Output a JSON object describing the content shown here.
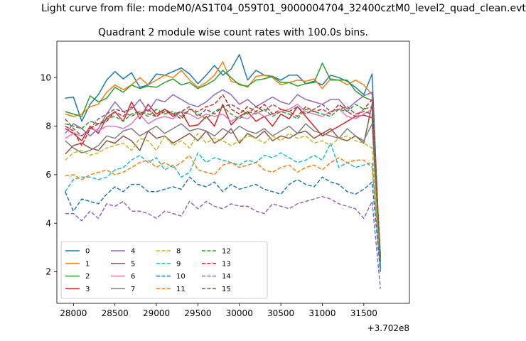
{
  "suptitle": "Light curve from file: modeM0/AS1T04_059T01_9000004704_32400cztM0_level2_quad_clean.evt",
  "chart_data": {
    "type": "line",
    "title": "Quadrant 2 module wise count rates with 100.0s bins.",
    "xlabel": "",
    "ylabel": "",
    "offset_text": "+3.702e8",
    "xlim": [
      27800,
      32050
    ],
    "ylim": [
      0.7,
      11.5
    ],
    "xticks": [
      "28000",
      "28500",
      "29000",
      "29500",
      "30000",
      "30500",
      "31000",
      "31500"
    ],
    "yticks": [
      "2",
      "4",
      "6",
      "8",
      "10"
    ],
    "grid": false,
    "legend": {
      "placement": "lower-left",
      "columns": 4
    },
    "x": [
      27900,
      28000,
      28100,
      28200,
      28300,
      28400,
      28500,
      28600,
      28700,
      28800,
      28900,
      29000,
      29100,
      29200,
      29300,
      29400,
      29500,
      29600,
      29700,
      29800,
      29900,
      30000,
      30100,
      30200,
      30300,
      30400,
      30500,
      30600,
      30700,
      30800,
      30900,
      31000,
      31100,
      31200,
      31300,
      31400,
      31500,
      31600,
      31700
    ],
    "series": [
      {
        "name": "0",
        "color": "#1f77b4",
        "style": "solid",
        "values": [
          9.15,
          9.2,
          8.2,
          8.9,
          9.3,
          9.9,
          10.25,
          9.95,
          10.2,
          9.6,
          9.7,
          10.15,
          10.1,
          10.25,
          10.4,
          10.15,
          9.75,
          10.1,
          10.5,
          10.1,
          10.35,
          10.95,
          9.9,
          10.3,
          10.1,
          10.05,
          9.9,
          10.1,
          10.1,
          9.75,
          9.85,
          9.7,
          10.1,
          10.0,
          9.85,
          9.6,
          9.3,
          10.15,
          2.1
        ]
      },
      {
        "name": "1",
        "color": "#ff7f0e",
        "style": "solid",
        "values": [
          8.5,
          8.4,
          8.5,
          8.8,
          8.9,
          9.4,
          9.7,
          9.5,
          9.7,
          10.0,
          9.7,
          9.9,
          10.1,
          10.0,
          10.3,
          9.9,
          9.6,
          9.8,
          10.1,
          10.65,
          9.85,
          9.75,
          9.6,
          10.05,
          10.1,
          10.0,
          9.7,
          9.8,
          9.9,
          9.85,
          9.95,
          9.55,
          9.95,
          9.9,
          9.7,
          9.9,
          9.7,
          9.3,
          2.5
        ]
      },
      {
        "name": "2",
        "color": "#2ca02c",
        "style": "solid",
        "values": [
          8.6,
          8.5,
          8.4,
          9.25,
          9.0,
          9.15,
          9.6,
          9.4,
          9.7,
          9.55,
          9.65,
          9.6,
          9.8,
          9.95,
          9.7,
          9.8,
          9.55,
          9.7,
          9.9,
          10.3,
          10.0,
          9.7,
          9.65,
          9.9,
          9.95,
          10.05,
          9.8,
          9.8,
          9.65,
          9.75,
          9.8,
          10.6,
          9.9,
          9.9,
          9.9,
          9.45,
          9.2,
          9.05,
          2.4
        ]
      },
      {
        "name": "3",
        "color": "#d62728",
        "style": "solid",
        "values": [
          7.9,
          7.7,
          7.4,
          8.0,
          7.7,
          8.35,
          8.6,
          8.2,
          9.0,
          8.3,
          8.9,
          8.5,
          8.7,
          8.4,
          8.6,
          8.0,
          8.05,
          8.4,
          8.0,
          8.9,
          8.05,
          8.4,
          8.6,
          8.2,
          8.4,
          8.0,
          8.5,
          8.3,
          8.8,
          8.4,
          8.0,
          7.6,
          7.8,
          8.0,
          8.2,
          8.4,
          8.45,
          8.35,
          2.6
        ]
      },
      {
        "name": "4",
        "color": "#9467bd",
        "style": "solid",
        "values": [
          7.7,
          8.1,
          7.9,
          7.6,
          7.9,
          8.5,
          9.0,
          8.6,
          8.7,
          9.1,
          8.6,
          9.1,
          9.0,
          9.3,
          9.1,
          8.9,
          8.8,
          9.0,
          9.3,
          9.5,
          9.3,
          8.9,
          9.1,
          8.8,
          9.0,
          9.2,
          9.0,
          8.9,
          9.3,
          9.1,
          9.0,
          8.9,
          9.1,
          9.1,
          8.7,
          9.0,
          9.25,
          9.4,
          2.3
        ]
      },
      {
        "name": "5",
        "color": "#8c564b",
        "style": "solid",
        "values": [
          6.85,
          7.2,
          7.3,
          7.1,
          7.0,
          7.4,
          7.3,
          7.6,
          7.4,
          7.0,
          7.8,
          7.5,
          7.6,
          7.3,
          7.5,
          7.7,
          7.4,
          7.8,
          7.3,
          7.5,
          7.9,
          7.3,
          7.7,
          7.5,
          7.8,
          7.4,
          7.6,
          7.5,
          7.7,
          7.8,
          7.5,
          7.7,
          7.9,
          7.5,
          7.4,
          7.6,
          7.3,
          8.9,
          2.2
        ]
      },
      {
        "name": "6",
        "color": "#e377c2",
        "style": "solid",
        "values": [
          7.5,
          7.7,
          7.6,
          7.9,
          7.8,
          8.0,
          8.0,
          7.9,
          8.1,
          8.5,
          8.1,
          8.3,
          8.4,
          8.3,
          8.6,
          8.5,
          8.3,
          8.5,
          8.4,
          8.5,
          8.2,
          8.4,
          8.3,
          8.6,
          8.4,
          8.5,
          8.6,
          8.7,
          8.9,
          8.6,
          8.5,
          8.4,
          8.6,
          8.7,
          8.4,
          8.3,
          8.5,
          8.7,
          2.2
        ]
      },
      {
        "name": "7",
        "color": "#7f7f7f",
        "style": "solid",
        "values": [
          7.4,
          7.1,
          6.9,
          7.0,
          7.2,
          7.6,
          7.5,
          7.8,
          7.9,
          7.6,
          7.8,
          8.0,
          7.7,
          7.9,
          8.1,
          7.8,
          7.9,
          7.8,
          7.6,
          7.9,
          7.7,
          8.0,
          7.8,
          7.7,
          7.9,
          7.6,
          7.8,
          8.0,
          7.7,
          8.1,
          7.8,
          7.7,
          7.6,
          7.5,
          7.9,
          7.6,
          7.4,
          8.1,
          2.1
        ]
      },
      {
        "name": "8",
        "color": "#bcbd22",
        "style": "dashed",
        "values": [
          6.6,
          6.9,
          7.0,
          6.8,
          6.9,
          7.1,
          7.2,
          7.3,
          7.0,
          7.5,
          7.4,
          7.0,
          7.6,
          7.2,
          7.4,
          7.1,
          7.7,
          7.3,
          7.5,
          7.4,
          7.2,
          7.4,
          7.6,
          7.5,
          7.3,
          7.6,
          7.4,
          7.7,
          7.5,
          7.6,
          7.3,
          7.4,
          7.2,
          7.5,
          7.6,
          7.4,
          7.3,
          7.1,
          2.4
        ]
      },
      {
        "name": "9",
        "color": "#17becf",
        "style": "dashed",
        "values": [
          5.3,
          5.8,
          5.9,
          5.9,
          5.8,
          5.9,
          6.2,
          6.3,
          6.6,
          6.8,
          6.5,
          6.7,
          6.2,
          6.4,
          5.9,
          6.1,
          6.9,
          6.5,
          6.7,
          6.6,
          6.5,
          6.4,
          6.6,
          6.5,
          6.8,
          6.7,
          6.9,
          6.7,
          6.5,
          6.6,
          6.8,
          6.6,
          7.3,
          6.3,
          6.5,
          6.3,
          6.4,
          6.5,
          2.0
        ]
      },
      {
        "name": "10",
        "color": "#1f77b4",
        "style": "dashed",
        "values": [
          5.3,
          4.5,
          5.0,
          4.9,
          4.8,
          5.2,
          5.5,
          5.3,
          5.6,
          5.6,
          5.3,
          5.3,
          5.4,
          5.5,
          5.4,
          5.9,
          5.6,
          5.5,
          5.7,
          5.3,
          5.6,
          5.4,
          5.5,
          5.6,
          5.4,
          5.3,
          5.2,
          5.6,
          5.8,
          5.6,
          5.5,
          5.9,
          5.7,
          5.6,
          5.3,
          5.2,
          5.4,
          5.7,
          2.0
        ]
      },
      {
        "name": "11",
        "color": "#ff7f0e",
        "style": "dashed",
        "values": [
          5.95,
          6.0,
          5.8,
          6.0,
          6.1,
          6.2,
          6.0,
          6.1,
          6.3,
          6.5,
          6.6,
          6.3,
          6.5,
          6.3,
          6.5,
          6.8,
          6.2,
          6.1,
          6.0,
          6.4,
          6.5,
          6.3,
          6.4,
          6.5,
          6.2,
          6.1,
          6.3,
          6.4,
          6.1,
          6.3,
          6.4,
          6.2,
          6.5,
          6.7,
          6.5,
          6.6,
          6.6,
          6.3,
          2.6
        ]
      },
      {
        "name": "12",
        "color": "#2ca02c",
        "style": "dashed",
        "values": [
          8.1,
          8.0,
          7.9,
          8.2,
          8.1,
          8.3,
          8.4,
          8.2,
          8.5,
          8.6,
          8.4,
          8.7,
          8.5,
          8.6,
          8.4,
          8.7,
          8.5,
          8.3,
          8.6,
          8.8,
          8.5,
          8.3,
          8.6,
          8.5,
          8.7,
          8.4,
          8.6,
          8.5,
          8.3,
          8.7,
          8.6,
          8.5,
          8.4,
          8.7,
          8.6,
          8.9,
          8.7,
          8.8,
          2.4
        ]
      },
      {
        "name": "13",
        "color": "#d62728",
        "style": "dashed",
        "values": [
          8.0,
          7.8,
          7.2,
          7.9,
          8.1,
          8.2,
          8.6,
          8.4,
          8.8,
          8.5,
          8.7,
          8.4,
          8.6,
          8.5,
          8.3,
          8.7,
          8.6,
          8.8,
          8.9,
          9.3,
          8.7,
          8.5,
          8.8,
          8.6,
          8.9,
          8.5,
          8.7,
          8.6,
          8.4,
          8.8,
          8.6,
          8.7,
          8.5,
          8.9,
          8.6,
          8.4,
          8.7,
          9.1,
          2.6
        ]
      },
      {
        "name": "14",
        "color": "#9467bd",
        "style": "dashed",
        "values": [
          4.4,
          4.4,
          4.1,
          4.5,
          4.2,
          4.8,
          4.7,
          4.9,
          4.5,
          4.5,
          4.4,
          4.2,
          4.5,
          4.4,
          4.3,
          4.9,
          4.6,
          4.9,
          4.7,
          4.6,
          4.8,
          4.7,
          4.7,
          4.5,
          4.4,
          4.8,
          4.7,
          4.6,
          4.8,
          4.9,
          5.0,
          5.1,
          5.0,
          4.8,
          4.7,
          4.6,
          4.2,
          4.9,
          1.3
        ]
      },
      {
        "name": "15",
        "color": "#8c564b",
        "style": "dashed",
        "values": [
          8.3,
          7.9,
          7.6,
          7.9,
          8.3,
          8.5,
          8.7,
          8.6,
          8.4,
          8.6,
          8.5,
          8.4,
          8.7,
          8.5,
          8.6,
          8.8,
          8.4,
          8.7,
          8.5,
          8.8,
          8.9,
          8.7,
          8.5,
          8.8,
          8.6,
          8.9,
          8.7,
          8.6,
          8.8,
          8.5,
          8.7,
          8.9,
          8.6,
          8.7,
          8.8,
          8.5,
          8.6,
          8.5,
          2.7
        ]
      }
    ]
  }
}
